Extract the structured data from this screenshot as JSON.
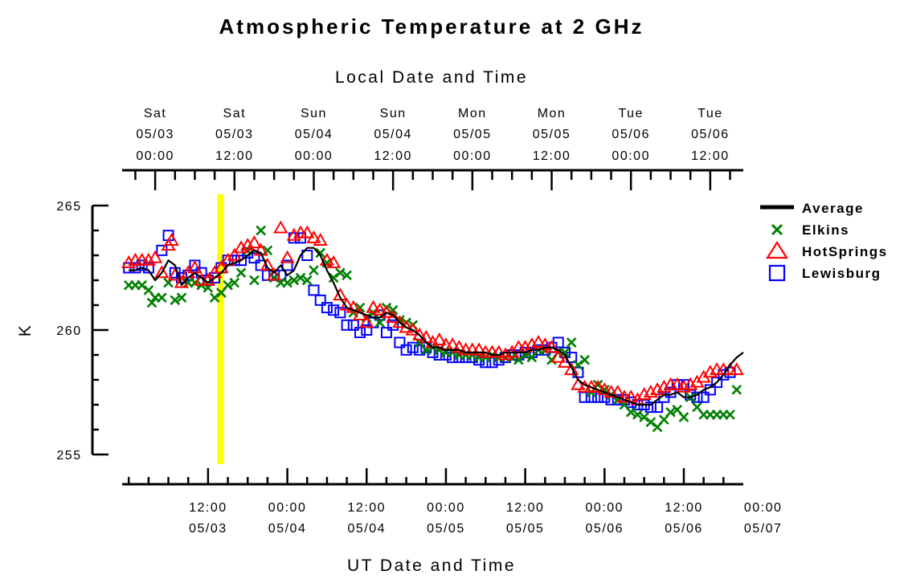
{
  "chart_data": {
    "type": "scatter",
    "title": "Atmospheric Temperature at 2 GHz",
    "top_axis_title": "Local Date and Time",
    "xlabel": "UT Date and Time",
    "ylabel": "K",
    "ylim": [
      255,
      265
    ],
    "yticks": [
      "255",
      "260",
      "265"
    ],
    "top_ticks": [
      {
        "day": "Sat",
        "date": "05/03",
        "time": "00:00"
      },
      {
        "day": "Sat",
        "date": "05/03",
        "time": "12:00"
      },
      {
        "day": "Sun",
        "date": "05/04",
        "time": "00:00"
      },
      {
        "day": "Sun",
        "date": "05/04",
        "time": "12:00"
      },
      {
        "day": "Mon",
        "date": "05/05",
        "time": "00:00"
      },
      {
        "day": "Mon",
        "date": "05/05",
        "time": "12:00"
      },
      {
        "day": "Tue",
        "date": "05/06",
        "time": "00:00"
      },
      {
        "day": "Tue",
        "date": "05/06",
        "time": "12:00"
      }
    ],
    "bottom_ticks": [
      {
        "time": "12:00",
        "date": "05/03"
      },
      {
        "time": "00:00",
        "date": "05/04"
      },
      {
        "time": "12:00",
        "date": "05/04"
      },
      {
        "time": "00:00",
        "date": "05/05"
      },
      {
        "time": "12:00",
        "date": "05/05"
      },
      {
        "time": "00:00",
        "date": "05/06"
      },
      {
        "time": "12:00",
        "date": "05/06"
      },
      {
        "time": "00:00",
        "date": "05/07"
      }
    ],
    "x_unit": "hours UT since 05/03 00:00",
    "xlim": [
      -1,
      93
    ],
    "highlight_x": 13.9,
    "legend_position": "right",
    "series": [
      {
        "name": "Average",
        "marker": "line",
        "color": "#000000",
        "x": [
          0,
          1,
          2,
          3,
          4,
          5,
          6,
          7,
          8,
          9,
          10,
          11,
          12,
          13,
          14,
          15,
          16,
          17,
          18,
          19,
          20,
          21,
          22,
          23,
          24,
          25,
          26,
          27,
          28,
          29,
          30,
          31,
          32,
          33,
          34,
          35,
          36,
          37,
          38,
          39,
          40,
          41,
          42,
          43,
          44,
          45,
          46,
          47,
          48,
          49,
          50,
          51,
          52,
          53,
          54,
          55,
          56,
          57,
          58,
          59,
          60,
          61,
          62,
          63,
          64,
          65,
          66,
          67,
          68,
          69,
          70,
          71,
          72,
          73,
          74,
          75,
          76,
          77,
          78,
          79,
          80,
          81,
          82,
          83,
          84,
          85,
          86,
          87,
          88,
          89,
          90,
          91,
          92,
          93
        ],
        "y": [
          262.4,
          262.4,
          262.5,
          262.4,
          262,
          262.3,
          262.8,
          262.6,
          261.8,
          262.1,
          262.3,
          262.1,
          261.9,
          262.1,
          262.3,
          262.6,
          262.7,
          262.8,
          263,
          263.2,
          263.1,
          262.5,
          262.3,
          262.6,
          262.2,
          262.4,
          263,
          263.3,
          263.3,
          263,
          262.4,
          261.9,
          261.3,
          260.9,
          260.8,
          260.7,
          260.6,
          260.5,
          260.5,
          260.7,
          260.6,
          260.3,
          260.1,
          260,
          259.8,
          259.5,
          259.3,
          259.3,
          259.2,
          259.2,
          259.2,
          259.1,
          259.1,
          259.1,
          259.1,
          259,
          259,
          259.1,
          259.1,
          259.1,
          259.1,
          259.2,
          259.2,
          259.3,
          259.3,
          259.2,
          259,
          258.5,
          258,
          257.8,
          257.7,
          257.6,
          257.5,
          257.4,
          257.3,
          257.2,
          257.1,
          257,
          257,
          257,
          257.2,
          257.4,
          257.4,
          257.5,
          257.3,
          257.3,
          257.4,
          257.6,
          257.7,
          257.9,
          258.2,
          258.6,
          258.9,
          259.1
        ]
      },
      {
        "name": "Elkins",
        "marker": "x",
        "color": "#008000",
        "x": [
          0,
          1,
          2,
          3,
          3.5,
          4,
          5,
          6,
          7,
          8,
          9,
          10,
          11,
          12,
          13,
          14,
          15,
          16,
          17,
          18,
          19,
          20,
          21,
          22,
          23,
          24,
          25,
          26,
          27,
          28,
          29,
          30,
          31,
          32,
          33,
          34,
          35,
          36,
          37,
          38,
          39,
          40,
          41,
          42,
          43,
          44,
          45,
          46,
          47,
          48,
          49,
          50,
          51,
          52,
          53,
          54,
          55,
          56,
          57,
          58,
          59,
          60,
          61,
          62,
          63,
          64,
          65,
          66,
          67,
          68,
          69,
          70,
          71,
          72,
          73,
          74,
          75,
          76,
          77,
          78,
          79,
          80,
          81,
          82,
          83,
          84,
          85,
          86,
          87,
          88,
          89,
          90,
          91,
          92
        ],
        "y": [
          261.8,
          261.8,
          261.8,
          261.6,
          261.1,
          261.3,
          261.3,
          261.9,
          261.2,
          261.3,
          261.9,
          261.9,
          261.8,
          261.7,
          261.3,
          261.5,
          261.8,
          261.9,
          262.3,
          263.2,
          262,
          264,
          263.2,
          262.1,
          261.9,
          261.9,
          262,
          262.1,
          262,
          262.4,
          263.1,
          262.7,
          262.1,
          262.3,
          262.2,
          260.7,
          260.9,
          260.5,
          260.7,
          260.3,
          260.9,
          260.8,
          260.4,
          260.3,
          260.2,
          259.5,
          259.2,
          259.3,
          259.2,
          259.1,
          259.1,
          259,
          259,
          259,
          258.9,
          258.9,
          259,
          258.9,
          258.9,
          258.9,
          258.8,
          259,
          258.9,
          259.2,
          259.2,
          258.8,
          259.1,
          259.1,
          259.5,
          258.6,
          258.8,
          257.5,
          257.8,
          257.6,
          257.4,
          257.2,
          257,
          256.7,
          256.6,
          256.5,
          256.3,
          256.1,
          256.4,
          256.7,
          256.8,
          256.5,
          257.3,
          256.9,
          256.6,
          256.6,
          256.6,
          256.6,
          256.6,
          257.6
        ]
      },
      {
        "name": "HotSprings",
        "marker": "triangle",
        "color": "#ff0000",
        "x": [
          0,
          1,
          2,
          3,
          4,
          5,
          6,
          6.5,
          7,
          8,
          9,
          10,
          11,
          12,
          13,
          14,
          15,
          16,
          17,
          18,
          19,
          20,
          21,
          22,
          23,
          24,
          25,
          26,
          27,
          28,
          29,
          30,
          31,
          32,
          33,
          34,
          35,
          36,
          37,
          38,
          39,
          40,
          41,
          42,
          43,
          44,
          45,
          46,
          47,
          48,
          49,
          50,
          51,
          52,
          53,
          54,
          55,
          56,
          57,
          58,
          59,
          60,
          61,
          62,
          63,
          64,
          65,
          66,
          67,
          68,
          69,
          70,
          71,
          72,
          73,
          74,
          75,
          76,
          77,
          78,
          79,
          80,
          81,
          82,
          83,
          84,
          85,
          86,
          87,
          88,
          89,
          90,
          91,
          92
        ],
        "y": [
          262.7,
          262.8,
          262.8,
          262.8,
          262.9,
          262.3,
          263.4,
          263.6,
          262.2,
          261.9,
          262.3,
          262.5,
          262,
          262,
          262.3,
          262.5,
          262.8,
          263,
          263.3,
          263.4,
          263.5,
          263.2,
          262.6,
          262.2,
          264.1,
          262.9,
          263.8,
          263.9,
          263.9,
          263.7,
          263.6,
          262.8,
          262.7,
          261.4,
          261,
          260.9,
          260.6,
          260.3,
          260.9,
          260.8,
          260.7,
          260.5,
          260.3,
          260.1,
          260,
          259.8,
          259.7,
          259.5,
          259.6,
          259.4,
          259.4,
          259.3,
          259.2,
          259.2,
          259.2,
          259.1,
          259.1,
          259.1,
          259,
          259.1,
          259.3,
          259.3,
          259.4,
          259.5,
          259.4,
          259.3,
          258.9,
          258.7,
          258.4,
          257.8,
          257.7,
          257.7,
          257.7,
          257.6,
          257.5,
          257.5,
          257.3,
          257.3,
          257.2,
          257.4,
          257.5,
          257.6,
          257.7,
          257.8,
          257.8,
          257.7,
          257.8,
          257.9,
          258.1,
          258.3,
          258.4,
          258.4,
          258.4,
          258.4
        ]
      },
      {
        "name": "Lewisburg",
        "marker": "square",
        "color": "#0000ff",
        "x": [
          0,
          1,
          2,
          3,
          5,
          6,
          7,
          8,
          9,
          10,
          11,
          12,
          13,
          14,
          15,
          16,
          17,
          18,
          19,
          20,
          21,
          22,
          23,
          24,
          25,
          26,
          27,
          28,
          29,
          30,
          31,
          32,
          33,
          34,
          35,
          36,
          37,
          38,
          39,
          40,
          41,
          42,
          43,
          44,
          45,
          46,
          47,
          48,
          49,
          50,
          51,
          52,
          53,
          54,
          55,
          56,
          57,
          58,
          59,
          60,
          61,
          62,
          63,
          64,
          65,
          66,
          67,
          68,
          69,
          70,
          71,
          72,
          73,
          74,
          75,
          76,
          77,
          78,
          79,
          80,
          81,
          82,
          83,
          84,
          85,
          86,
          87,
          88,
          89,
          90,
          91
        ],
        "y": [
          262.5,
          262.5,
          262.6,
          262.5,
          263.2,
          263.8,
          262.3,
          262.1,
          262.2,
          262.6,
          262.3,
          262,
          262.1,
          262.5,
          262.8,
          262.8,
          262.8,
          263.1,
          262.9,
          262.6,
          262.2,
          262.2,
          262.2,
          262.6,
          263.7,
          263.7,
          263,
          261.6,
          261.2,
          260.9,
          260.8,
          260.7,
          260.2,
          260.2,
          259.9,
          260,
          260.3,
          260.6,
          259.9,
          260.2,
          259.5,
          259.2,
          259.3,
          259.2,
          259.3,
          259.1,
          259,
          259,
          258.9,
          258.9,
          258.9,
          258.9,
          258.8,
          258.7,
          258.7,
          258.8,
          258.9,
          259,
          259,
          259.1,
          259.1,
          259.2,
          259.2,
          259.3,
          259.5,
          259.1,
          258.9,
          258.3,
          257.3,
          257.3,
          257.3,
          257.3,
          257.2,
          257.2,
          257.2,
          257.1,
          257,
          257,
          256.9,
          256.9,
          257.3,
          257.5,
          257.8,
          257.8,
          257.4,
          257.3,
          257.3,
          257.6,
          257.9,
          258.2,
          258.3
        ]
      }
    ]
  }
}
